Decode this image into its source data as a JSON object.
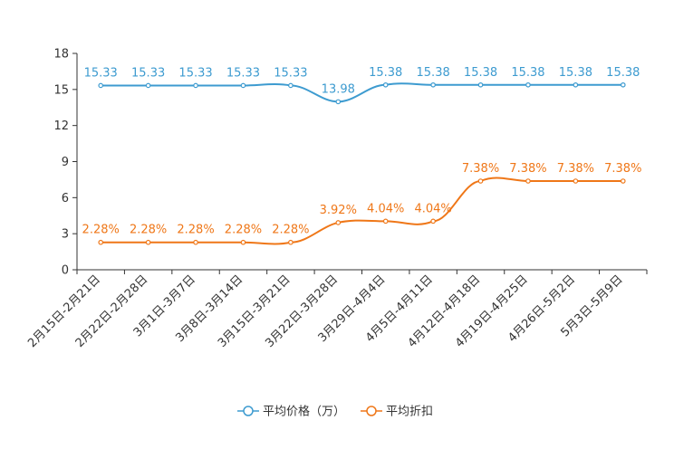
{
  "chart_data": {
    "type": "line",
    "categories": [
      "2月15日-2月21日",
      "2月22日-2月28日",
      "3月1日-3月7日",
      "3月8日-3月14日",
      "3月15日-3月21日",
      "3月22日-3月28日",
      "3月29日-4月4日",
      "4月5日-4月11日",
      "4月12日-4月18日",
      "4月19日-4月25日",
      "4月26日-5月2日",
      "5月3日-5月9日"
    ],
    "ylim": [
      0,
      18
    ],
    "yticks": [
      0,
      3,
      6,
      9,
      12,
      15,
      18
    ],
    "series": [
      {
        "name": "平均价格（万）",
        "color": "#3d9bd0",
        "values": [
          15.33,
          15.33,
          15.33,
          15.33,
          15.33,
          13.98,
          15.38,
          15.38,
          15.38,
          15.38,
          15.38,
          15.38
        ],
        "labels": [
          "15.33",
          "15.33",
          "15.33",
          "15.33",
          "15.33",
          "13.98",
          "15.38",
          "15.38",
          "15.38",
          "15.38",
          "15.38",
          "15.38"
        ]
      },
      {
        "name": "平均折扣",
        "color": "#ef7718",
        "values": [
          2.28,
          2.28,
          2.28,
          2.28,
          2.28,
          3.92,
          4.04,
          4.04,
          7.38,
          7.38,
          7.38,
          7.38
        ],
        "labels": [
          "2.28%",
          "2.28%",
          "2.28%",
          "2.28%",
          "2.28%",
          "3.92%",
          "4.04%",
          "4.04%",
          "7.38%",
          "7.38%",
          "7.38%",
          "7.38%"
        ]
      }
    ],
    "legend_position": "bottom-center"
  }
}
